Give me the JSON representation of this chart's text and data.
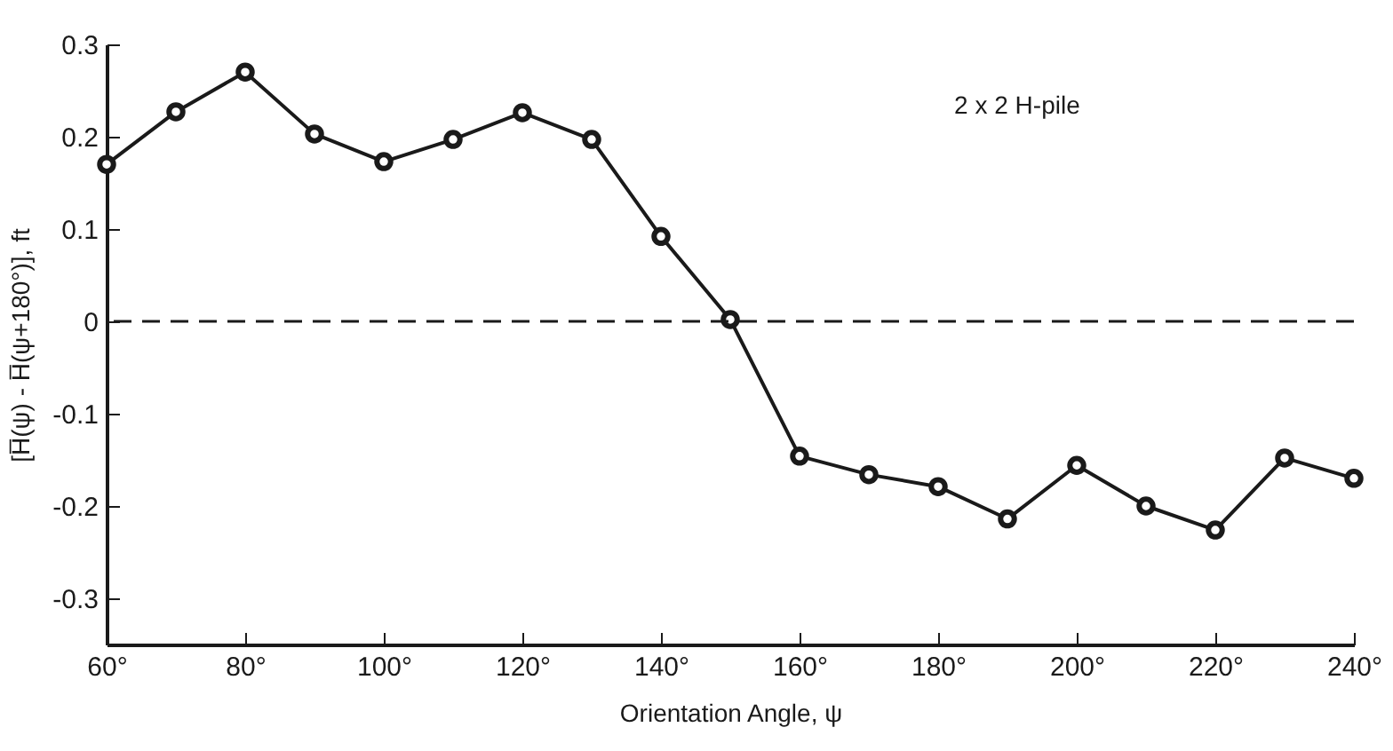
{
  "chart_data": {
    "type": "line",
    "xlabel": "Orientation Angle, ψ",
    "ylabel": "[H̅(ψ) - H̅(ψ+180°)], ft",
    "annotations": [
      "2 x 2 H-pile"
    ],
    "x": [
      60,
      70,
      80,
      90,
      100,
      110,
      120,
      130,
      140,
      150,
      160,
      170,
      180,
      190,
      200,
      210,
      220,
      230,
      240
    ],
    "series": [
      {
        "color": "#1a1a1a",
        "values": [
          0.17,
          0.227,
          0.27,
          0.203,
          0.173,
          0.197,
          0.226,
          0.197,
          0.092,
          0.002,
          -0.146,
          -0.166,
          -0.179,
          -0.214,
          -0.156,
          -0.2,
          -0.226,
          -0.148,
          -0.17
        ]
      }
    ],
    "xlim": [
      60,
      240
    ],
    "ylim": [
      -0.35,
      0.3
    ],
    "xticks": [
      {
        "value": 60,
        "label": "60°"
      },
      {
        "value": 80,
        "label": "80°"
      },
      {
        "value": 100,
        "label": "100°"
      },
      {
        "value": 120,
        "label": "120°"
      },
      {
        "value": 140,
        "label": "140°"
      },
      {
        "value": 160,
        "label": "160°"
      },
      {
        "value": 180,
        "label": "180°"
      },
      {
        "value": 200,
        "label": "200°"
      },
      {
        "value": 220,
        "label": "220°"
      },
      {
        "value": 240,
        "label": "240°"
      }
    ],
    "yticks": [
      0.3,
      0.2,
      0.1,
      {
        "value": 0,
        "label": "0"
      },
      -0.1,
      -0.2,
      -0.3
    ],
    "ref_lines": [
      {
        "axis": "y",
        "value": 0,
        "line_style": "dashed",
        "color": "#1a1a1a"
      }
    ],
    "grid": false,
    "marker": "circle",
    "line_style": "solid"
  }
}
